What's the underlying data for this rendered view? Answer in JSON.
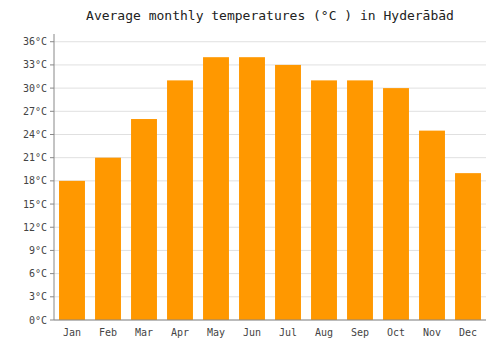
{
  "chart_data": {
    "type": "bar",
    "title": "Average monthly temperatures (°C ) in Hyderābād",
    "categories": [
      "Jan",
      "Feb",
      "Mar",
      "Apr",
      "May",
      "Jun",
      "Jul",
      "Aug",
      "Sep",
      "Oct",
      "Nov",
      "Dec"
    ],
    "values": [
      18,
      21,
      26,
      31,
      34,
      34,
      33,
      31,
      31,
      30,
      24.5,
      19
    ],
    "color": "#FF9800",
    "ylim": [
      0,
      37
    ],
    "yticks": [
      {
        "value": 0,
        "label": "0°C"
      },
      {
        "value": 3,
        "label": "3°C"
      },
      {
        "value": 6,
        "label": "6°C"
      },
      {
        "value": 9,
        "label": "9°C"
      },
      {
        "value": 12,
        "label": "12°C"
      },
      {
        "value": 15,
        "label": "15°C"
      },
      {
        "value": 18,
        "label": "18°C"
      },
      {
        "value": 21,
        "label": "21°C"
      },
      {
        "value": 24,
        "label": "24°C"
      },
      {
        "value": 27,
        "label": "27°C"
      },
      {
        "value": 30,
        "label": "30°C"
      },
      {
        "value": 33,
        "label": "33°C"
      },
      {
        "value": 36,
        "label": "36°C"
      }
    ],
    "grid": true
  }
}
